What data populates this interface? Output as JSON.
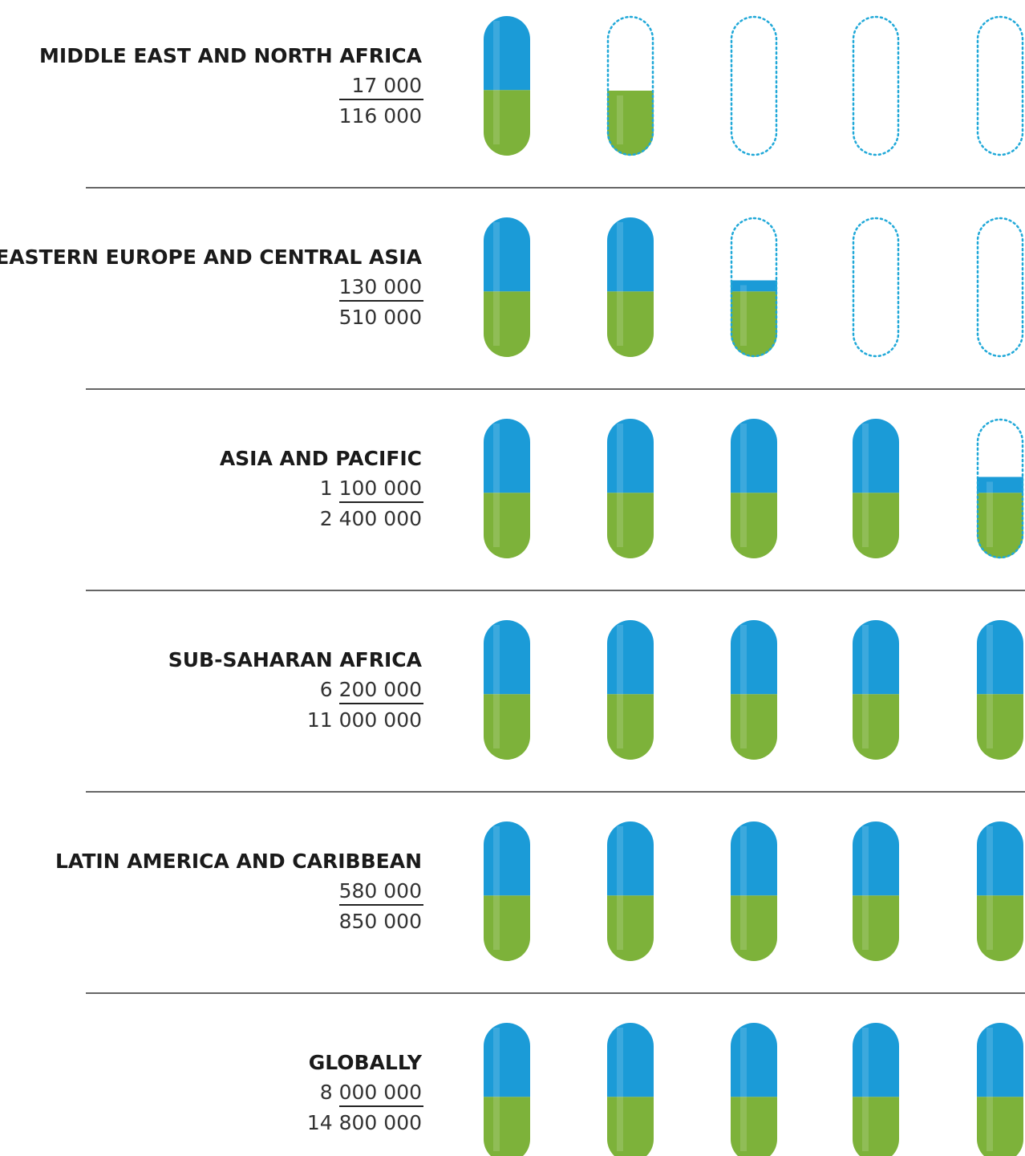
{
  "rows": [
    {
      "region": "MIDDLE EAST AND NORTH AFRICA",
      "numerator": {
        "value": 17000,
        "label": "17 000"
      },
      "denominator": {
        "value": 116000,
        "label": "116 000"
      }
    },
    {
      "region": "EASTERN EUROPE AND CENTRAL ASIA",
      "numerator": {
        "value": 130000,
        "label": "130 000"
      },
      "denominator": {
        "value": 510000,
        "label": "510 000"
      }
    },
    {
      "region": "ASIA AND PACIFIC",
      "numerator": {
        "value": 1100000,
        "label": "1 100 000"
      },
      "denominator": {
        "value": 2400000,
        "label": "2 400 000"
      }
    },
    {
      "region": "SUB-SAHARAN AFRICA",
      "numerator": {
        "value": 6200000,
        "label": "6 200 000"
      },
      "denominator": {
        "value": 11000000,
        "label": "11 000 000"
      }
    },
    {
      "region": "LATIN AMERICA AND CARIBBEAN",
      "numerator": {
        "value": 580000,
        "label": "580 000"
      },
      "denominator": {
        "value": 850000,
        "label": "850 000"
      }
    },
    {
      "region": "GLOBALLY",
      "numerator": {
        "value": 8000000,
        "label": "8 000 000"
      },
      "denominator": {
        "value": 14800000,
        "label": "14 800 000"
      }
    }
  ]
}
